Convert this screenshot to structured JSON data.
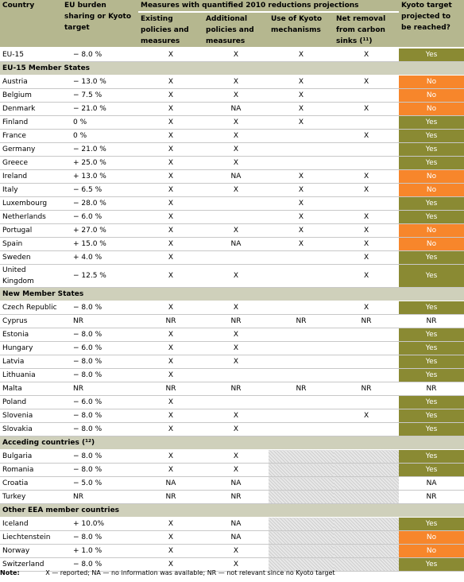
{
  "header": {
    "country": "Country",
    "burden": "EU burden sharing or Kyoto target",
    "measures": "Measures with quantified 2010 reductions projections",
    "existing": "Existing policies and measures",
    "additional": "Additional policies and measures",
    "kyoto_mech": "Use of Kyoto mechanisms",
    "sinks": "Net removal from carbon sinks (¹¹)",
    "projected": "Kyoto target projected to be reached?"
  },
  "sections": [
    {
      "title": "",
      "rows": [
        {
          "country": "EU-15",
          "target": "− 8.0 %",
          "existing": "X",
          "additional": "X",
          "mech": "X",
          "sinks": "X",
          "result": "Yes"
        }
      ]
    },
    {
      "title": "EU-15 Member States",
      "rows": [
        {
          "country": "Austria",
          "target": "− 13.0 %",
          "existing": "X",
          "additional": "X",
          "mech": "X",
          "sinks": "X",
          "result": "No"
        },
        {
          "country": "Belgium",
          "target": "− 7.5 %",
          "existing": "X",
          "additional": "X",
          "mech": "X",
          "sinks": "",
          "result": "No"
        },
        {
          "country": "Denmark",
          "target": "− 21.0 %",
          "existing": "X",
          "additional": "NA",
          "mech": "X",
          "sinks": "X",
          "result": "No"
        },
        {
          "country": "Finland",
          "target": "0 %",
          "existing": "X",
          "additional": "X",
          "mech": "X",
          "sinks": "",
          "result": "Yes"
        },
        {
          "country": "France",
          "target": "0 %",
          "existing": "X",
          "additional": "X",
          "mech": "",
          "sinks": "X",
          "result": "Yes"
        },
        {
          "country": "Germany",
          "target": "− 21.0 %",
          "existing": "X",
          "additional": "X",
          "mech": "",
          "sinks": "",
          "result": "Yes"
        },
        {
          "country": "Greece",
          "target": "+ 25.0 %",
          "existing": "X",
          "additional": "X",
          "mech": "",
          "sinks": "",
          "result": "Yes"
        },
        {
          "country": "Ireland",
          "target": "+ 13.0 %",
          "existing": "X",
          "additional": "NA",
          "mech": "X",
          "sinks": "X",
          "result": "No"
        },
        {
          "country": "Italy",
          "target": "− 6.5 %",
          "existing": "X",
          "additional": "X",
          "mech": "X",
          "sinks": "X",
          "result": "No"
        },
        {
          "country": "Luxembourg",
          "target": "− 28.0 %",
          "existing": "X",
          "additional": "",
          "mech": "X",
          "sinks": "",
          "result": "Yes"
        },
        {
          "country": "Netherlands",
          "target": "− 6.0 %",
          "existing": "X",
          "additional": "",
          "mech": "X",
          "sinks": "X",
          "result": "Yes"
        },
        {
          "country": "Portugal",
          "target": "+ 27.0 %",
          "existing": "X",
          "additional": "X",
          "mech": "X",
          "sinks": "X",
          "result": "No"
        },
        {
          "country": "Spain",
          "target": "+ 15.0 %",
          "existing": "X",
          "additional": "NA",
          "mech": "X",
          "sinks": "X",
          "result": "No"
        },
        {
          "country": "Sweden",
          "target": "+ 4.0 %",
          "existing": "X",
          "additional": "",
          "mech": "",
          "sinks": "X",
          "result": "Yes"
        },
        {
          "country": "United Kingdom",
          "target": "− 12.5 %",
          "existing": "X",
          "additional": "X",
          "mech": "",
          "sinks": "X",
          "result": "Yes"
        }
      ]
    },
    {
      "title": "New Member States",
      "rows": [
        {
          "country": "Czech Republic",
          "target": "− 8.0 %",
          "existing": "X",
          "additional": "X",
          "mech": "",
          "sinks": "X",
          "result": "Yes"
        },
        {
          "country": "Cyprus",
          "target": "NR",
          "existing": "NR",
          "additional": "NR",
          "mech": "NR",
          "sinks": "NR",
          "result": "NR"
        },
        {
          "country": "Estonia",
          "target": "− 8.0 %",
          "existing": "X",
          "additional": "X",
          "mech": "",
          "sinks": "",
          "result": "Yes"
        },
        {
          "country": "Hungary",
          "target": "− 6.0 %",
          "existing": "X",
          "additional": "X",
          "mech": "",
          "sinks": "",
          "result": "Yes"
        },
        {
          "country": "Latvia",
          "target": "− 8.0 %",
          "existing": "X",
          "additional": "X",
          "mech": "",
          "sinks": "",
          "result": "Yes"
        },
        {
          "country": "Lithuania",
          "target": "− 8.0 %",
          "existing": "X",
          "additional": "",
          "mech": "",
          "sinks": "",
          "result": "Yes"
        },
        {
          "country": "Malta",
          "target": "NR",
          "existing": "NR",
          "additional": "NR",
          "mech": "NR",
          "sinks": "NR",
          "result": "NR"
        },
        {
          "country": "Poland",
          "target": "− 6.0 %",
          "existing": "X",
          "additional": "",
          "mech": "",
          "sinks": "",
          "result": "Yes"
        },
        {
          "country": "Slovenia",
          "target": "− 8.0 %",
          "existing": "X",
          "additional": "X",
          "mech": "",
          "sinks": "X",
          "result": "Yes"
        },
        {
          "country": "Slovakia",
          "target": "− 8.0 %",
          "existing": "X",
          "additional": "X",
          "mech": "",
          "sinks": "",
          "result": "Yes"
        }
      ]
    },
    {
      "title": "Acceding countries (¹²)",
      "hatch": true,
      "rows": [
        {
          "country": "Bulgaria",
          "target": "− 8.0 %",
          "existing": "X",
          "additional": "X",
          "mech": "",
          "sinks": "",
          "result": "Yes"
        },
        {
          "country": "Romania",
          "target": "− 8.0 %",
          "existing": "X",
          "additional": "X",
          "mech": "",
          "sinks": "",
          "result": "Yes"
        },
        {
          "country": "Croatia",
          "target": "− 5.0 %",
          "existing": "NA",
          "additional": "NA",
          "mech": "",
          "sinks": "",
          "result": "NA"
        },
        {
          "country": "Turkey",
          "target": "NR",
          "existing": "NR",
          "additional": "NR",
          "mech": "",
          "sinks": "",
          "result": "NR"
        }
      ]
    },
    {
      "title": "Other EEA member countries",
      "hatch": true,
      "rows": [
        {
          "country": "Iceland",
          "target": "+ 10.0%",
          "existing": "X",
          "additional": "NA",
          "mech": "",
          "sinks": "",
          "result": "Yes"
        },
        {
          "country": "Liechtenstein",
          "target": "− 8.0 %",
          "existing": "X",
          "additional": "NA",
          "mech": "",
          "sinks": "",
          "result": "No"
        },
        {
          "country": "Norway",
          "target": "+ 1.0 %",
          "existing": "X",
          "additional": "X",
          "mech": "",
          "sinks": "",
          "result": "No"
        },
        {
          "country": "Switzerland",
          "target": "− 8.0 %",
          "existing": "X",
          "additional": "X",
          "mech": "",
          "sinks": "",
          "result": "Yes"
        }
      ]
    }
  ],
  "note": {
    "label": "Note:",
    "text": "X — reported; NA — no information was available; NR — not relevant since no Kyoto target"
  },
  "colors": {
    "yes": "#8a8a33",
    "no": "#f7862b",
    "header": "#b5b78f",
    "section": "#cfd0bb"
  }
}
